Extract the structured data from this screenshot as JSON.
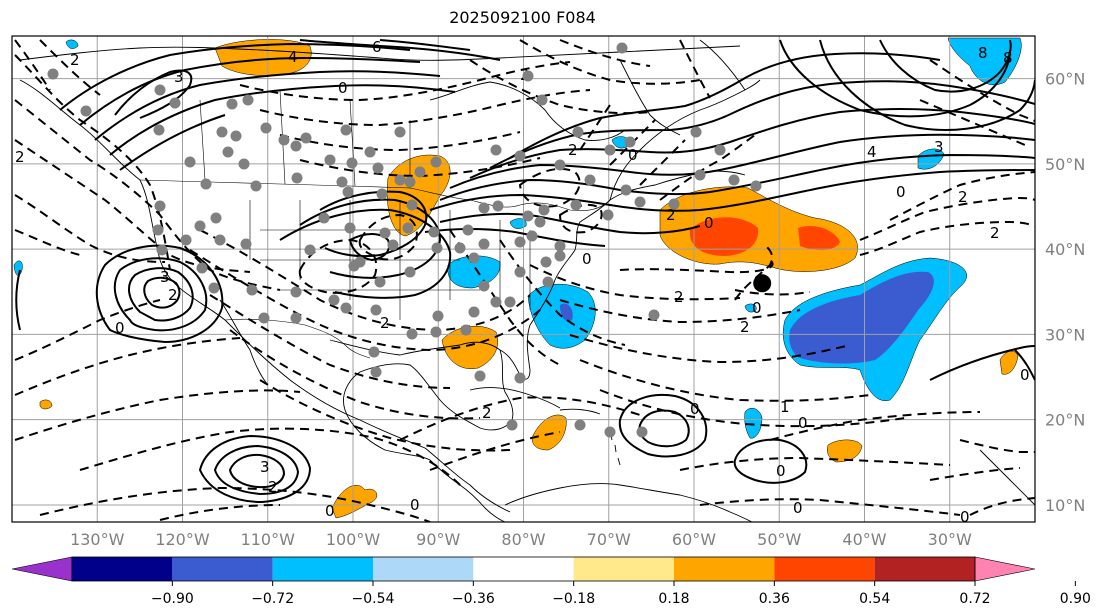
{
  "title": "2025092100 F084",
  "map": {
    "lon_range": [
      -140,
      -20
    ],
    "lat_range": [
      8,
      65
    ],
    "lon_labels": [
      "130°W",
      "120°W",
      "110°W",
      "100°W",
      "90°W",
      "80°W",
      "70°W",
      "60°W",
      "50°W",
      "40°W",
      "30°W"
    ],
    "lat_labels": [
      "60°N",
      "50°N",
      "40°N",
      "30°N",
      "20°N",
      "10°N"
    ],
    "contour_labels": [
      "6",
      "4",
      "3",
      "0",
      "2",
      "2",
      "0",
      "2",
      "4",
      "3",
      "0",
      "2",
      "2",
      "8",
      "8",
      "0",
      "2",
      "0",
      "2",
      "2",
      "0",
      "1",
      "0",
      "0",
      "0",
      "0",
      "0",
      "3",
      "2",
      "0",
      "3",
      "2",
      "2",
      "2",
      "0",
      "0",
      "0",
      "2"
    ],
    "storm_marker": {
      "lon": -52,
      "lat": 36
    }
  },
  "colorbar": {
    "ticks": [
      "−0.90",
      "−0.72",
      "−0.54",
      "−0.36",
      "−0.18",
      "0.18",
      "0.36",
      "0.54",
      "0.72",
      "0.90"
    ],
    "colors": [
      "#9932cc",
      "#00008b",
      "#3b5bd0",
      "#00bfff",
      "#add8f8",
      "#ffffff",
      "#ffe98a",
      "#ffa500",
      "#ff4500",
      "#b22222",
      "#ff82b0"
    ]
  },
  "colors": {
    "neg_strong": "#3b5bd0",
    "neg_mid": "#00bfff",
    "pos_mid": "#ffa500",
    "pos_strong": "#ff4500",
    "dots": "#808080",
    "grid": "#a0a0a0"
  }
}
